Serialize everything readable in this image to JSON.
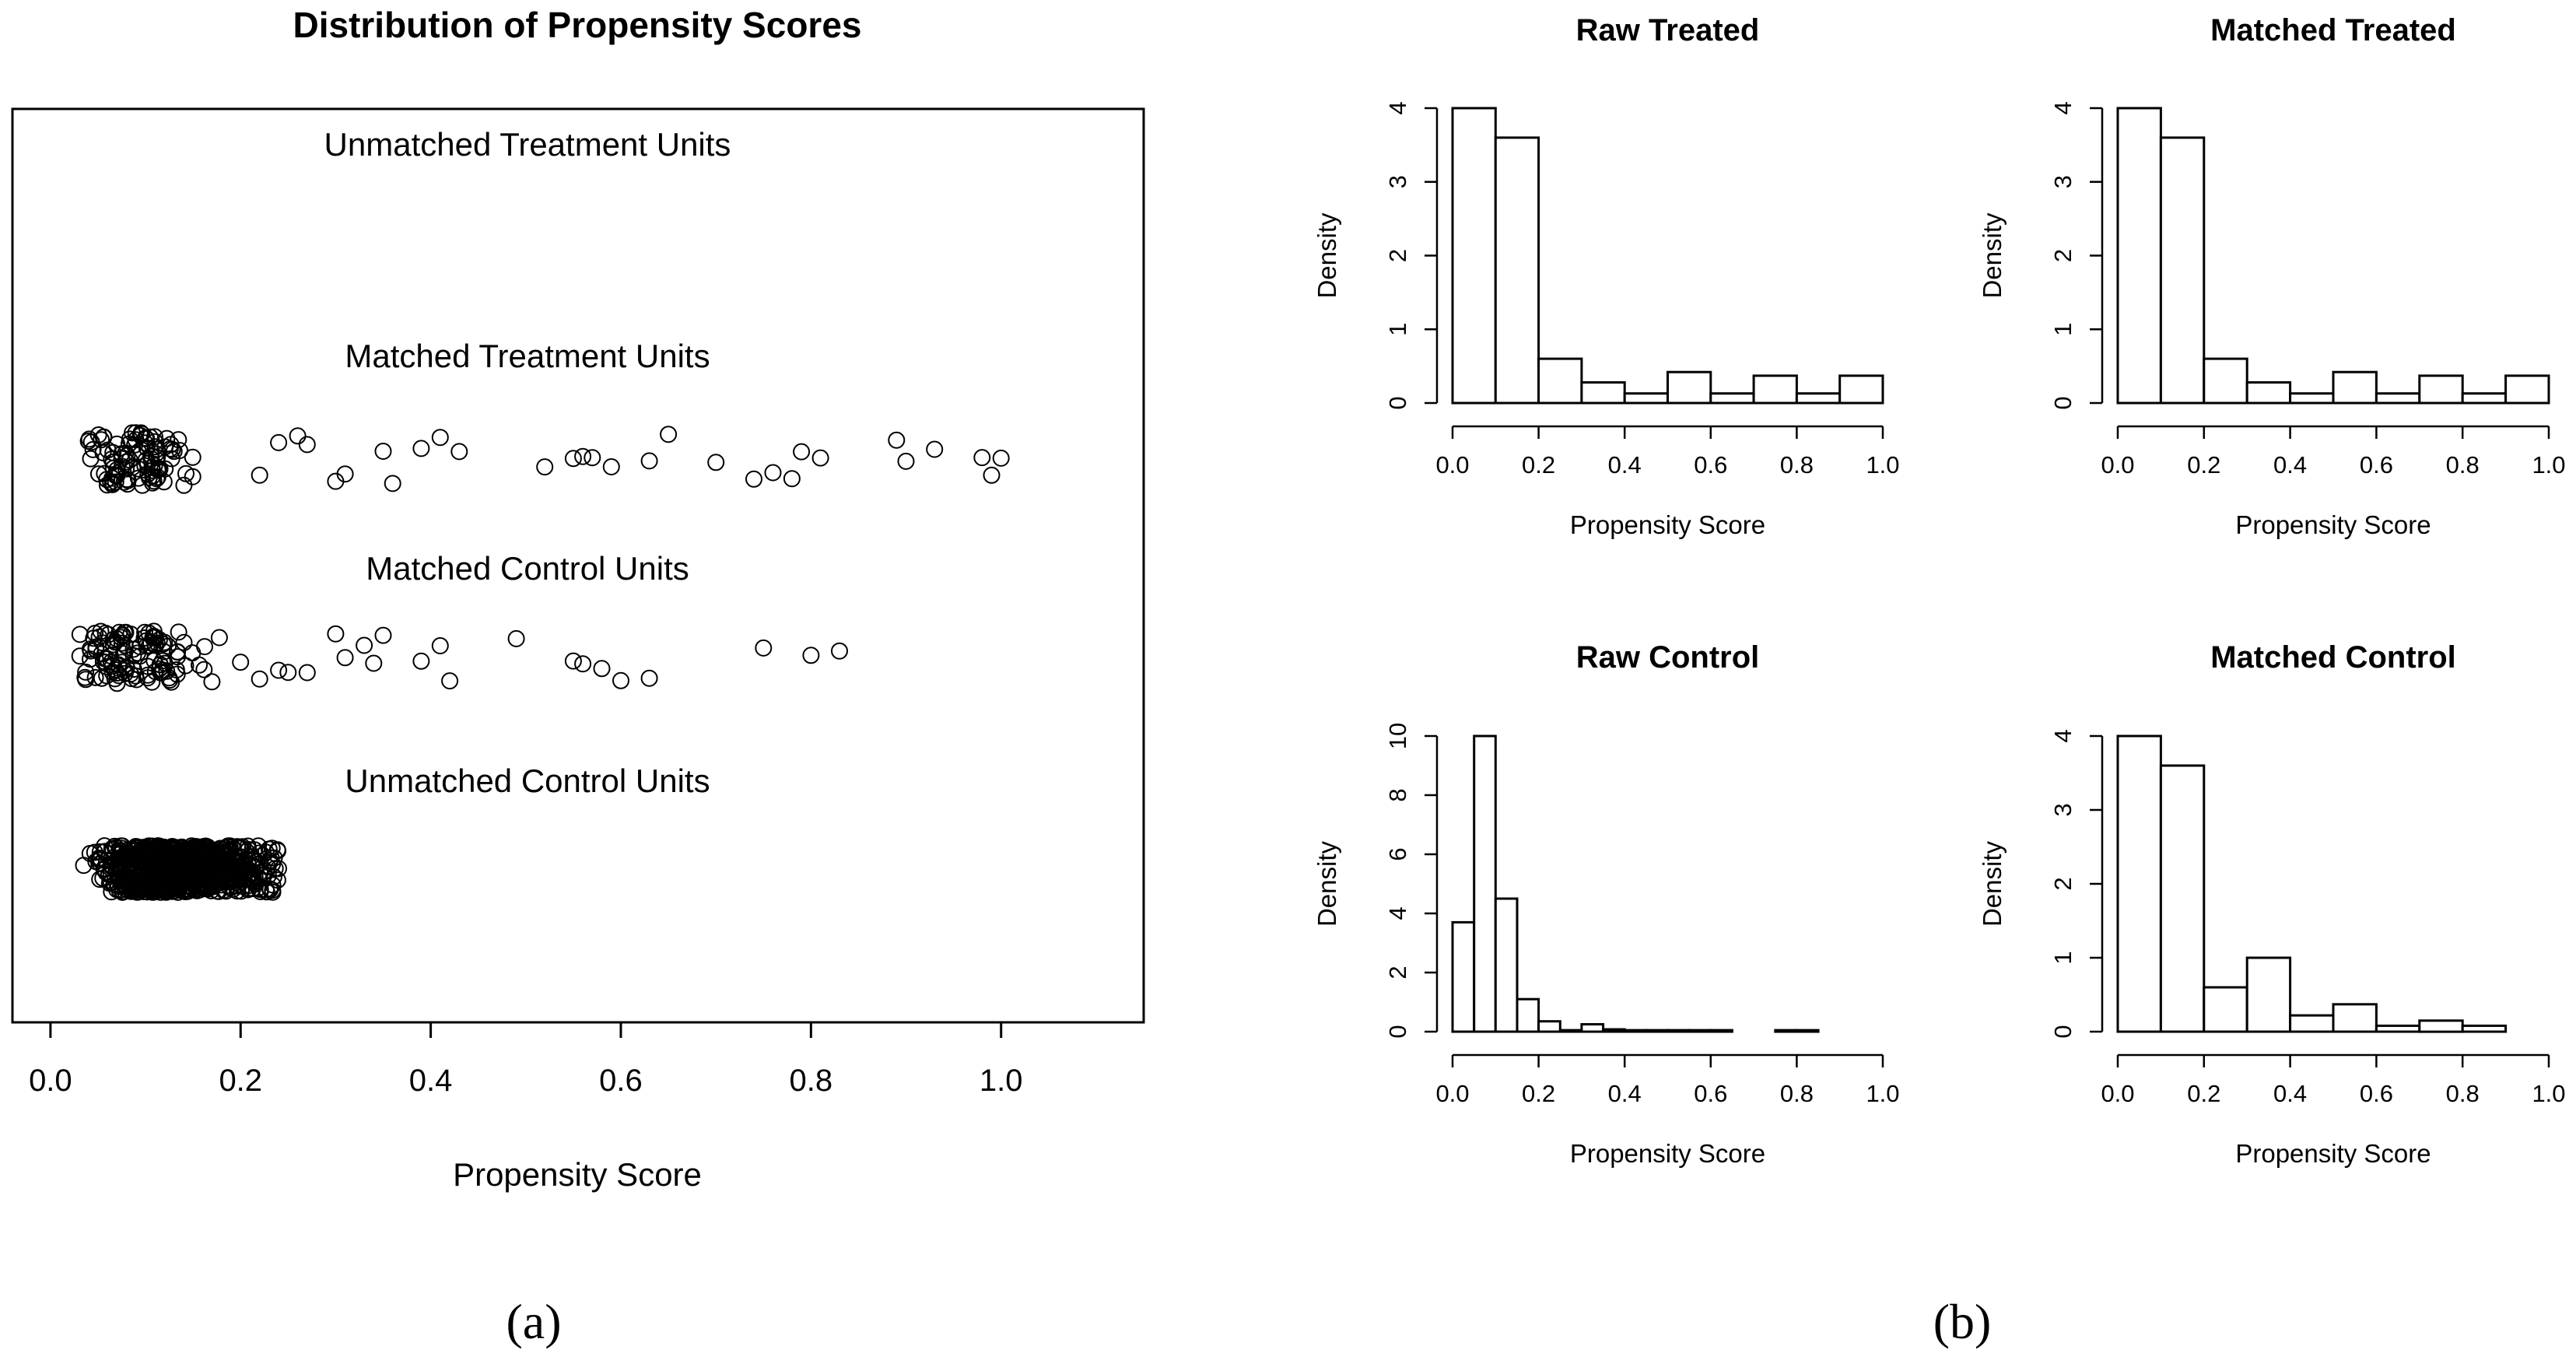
{
  "panel_labels": {
    "a": "(a)",
    "b": "(b)"
  },
  "chart_data": [
    {
      "id": "jitter",
      "type": "scatter",
      "title": "Distribution of Propensity Scores",
      "xlabel": "Propensity Score",
      "ylabel": "",
      "xlim": [
        -0.04,
        1.15
      ],
      "xticks": [
        0.0,
        0.2,
        0.4,
        0.6,
        0.8,
        1.0
      ],
      "tick_labels": [
        "0.0",
        "0.2",
        "0.4",
        "0.6",
        "0.8",
        "1.0"
      ],
      "groups": [
        {
          "label": "Unmatched Treatment Units",
          "count": 0,
          "range": [
            0.0,
            0.0
          ]
        },
        {
          "label": "Matched Treatment Units",
          "count": 130,
          "range": [
            0.03,
            1.0
          ],
          "outliers": [
            0.22,
            0.24,
            0.26,
            0.27,
            0.3,
            0.31,
            0.35,
            0.36,
            0.39,
            0.41,
            0.43,
            0.52,
            0.55,
            0.56,
            0.57,
            0.59,
            0.63,
            0.65,
            0.7,
            0.74,
            0.76,
            0.78,
            0.79,
            0.81,
            0.89,
            0.9,
            0.93,
            0.98,
            0.99,
            1.0
          ]
        },
        {
          "label": "Matched Control Units",
          "count": 140,
          "range": [
            0.03,
            0.83
          ],
          "outliers": [
            0.2,
            0.22,
            0.24,
            0.25,
            0.27,
            0.3,
            0.31,
            0.33,
            0.34,
            0.35,
            0.39,
            0.41,
            0.42,
            0.49,
            0.55,
            0.56,
            0.58,
            0.6,
            0.63,
            0.75,
            0.8,
            0.83
          ]
        },
        {
          "label": "Unmatched Control Units",
          "count": 900,
          "range": [
            0.02,
            0.24
          ]
        }
      ]
    },
    {
      "id": "raw-treated",
      "type": "bar",
      "title": "Raw Treated",
      "xlabel": "Propensity Score",
      "ylabel": "Density",
      "bin_edges": [
        0.0,
        0.1,
        0.2,
        0.3,
        0.4,
        0.5,
        0.6,
        0.7,
        0.8,
        0.9,
        1.0
      ],
      "values": [
        4.0,
        3.6,
        0.6,
        0.28,
        0.13,
        0.42,
        0.13,
        0.37,
        0.13,
        0.37
      ],
      "xlim": [
        0,
        1
      ],
      "ylim": [
        0,
        4
      ],
      "yticks": [
        0,
        1,
        2,
        3,
        4
      ],
      "xtick_labels": [
        "0.0",
        "0.2",
        "0.4",
        "0.6",
        "0.8",
        "1.0"
      ]
    },
    {
      "id": "matched-treated",
      "type": "bar",
      "title": "Matched Treated",
      "xlabel": "Propensity Score",
      "ylabel": "Density",
      "bin_edges": [
        0.0,
        0.1,
        0.2,
        0.3,
        0.4,
        0.5,
        0.6,
        0.7,
        0.8,
        0.9,
        1.0
      ],
      "values": [
        4.0,
        3.6,
        0.6,
        0.28,
        0.13,
        0.42,
        0.13,
        0.37,
        0.13,
        0.37
      ],
      "xlim": [
        0,
        1
      ],
      "ylim": [
        0,
        4
      ],
      "yticks": [
        0,
        1,
        2,
        3,
        4
      ],
      "xtick_labels": [
        "0.0",
        "0.2",
        "0.4",
        "0.6",
        "0.8",
        "1.0"
      ]
    },
    {
      "id": "raw-control",
      "type": "bar",
      "title": "Raw Control",
      "xlabel": "Propensity Score",
      "ylabel": "Density",
      "bin_edges": [
        0.0,
        0.05,
        0.1,
        0.15,
        0.2,
        0.25,
        0.3,
        0.35,
        0.4,
        0.45,
        0.5,
        0.55,
        0.6,
        0.65,
        0.7,
        0.75,
        0.8,
        0.85
      ],
      "values": [
        3.7,
        10.0,
        4.5,
        1.1,
        0.35,
        0.05,
        0.25,
        0.08,
        0.05,
        0.05,
        0.05,
        0.05,
        0.05,
        0.0,
        0.0,
        0.05,
        0.05
      ],
      "xlim": [
        0,
        1
      ],
      "ylim": [
        0,
        10
      ],
      "yticks": [
        0,
        2,
        4,
        6,
        8,
        10
      ],
      "xtick_labels": [
        "0.0",
        "0.2",
        "0.4",
        "0.6",
        "0.8",
        "1.0"
      ]
    },
    {
      "id": "matched-control",
      "type": "bar",
      "title": "Matched Control",
      "xlabel": "Propensity Score",
      "ylabel": "Density",
      "bin_edges": [
        0.0,
        0.1,
        0.2,
        0.3,
        0.4,
        0.5,
        0.6,
        0.7,
        0.8,
        0.9
      ],
      "values": [
        4.0,
        3.6,
        0.6,
        1.0,
        0.22,
        0.37,
        0.08,
        0.15,
        0.08
      ],
      "xlim": [
        0,
        1
      ],
      "ylim": [
        0,
        4
      ],
      "yticks": [
        0,
        1,
        2,
        3,
        4
      ],
      "xtick_labels": [
        "0.0",
        "0.2",
        "0.4",
        "0.6",
        "0.8",
        "1.0"
      ]
    }
  ]
}
